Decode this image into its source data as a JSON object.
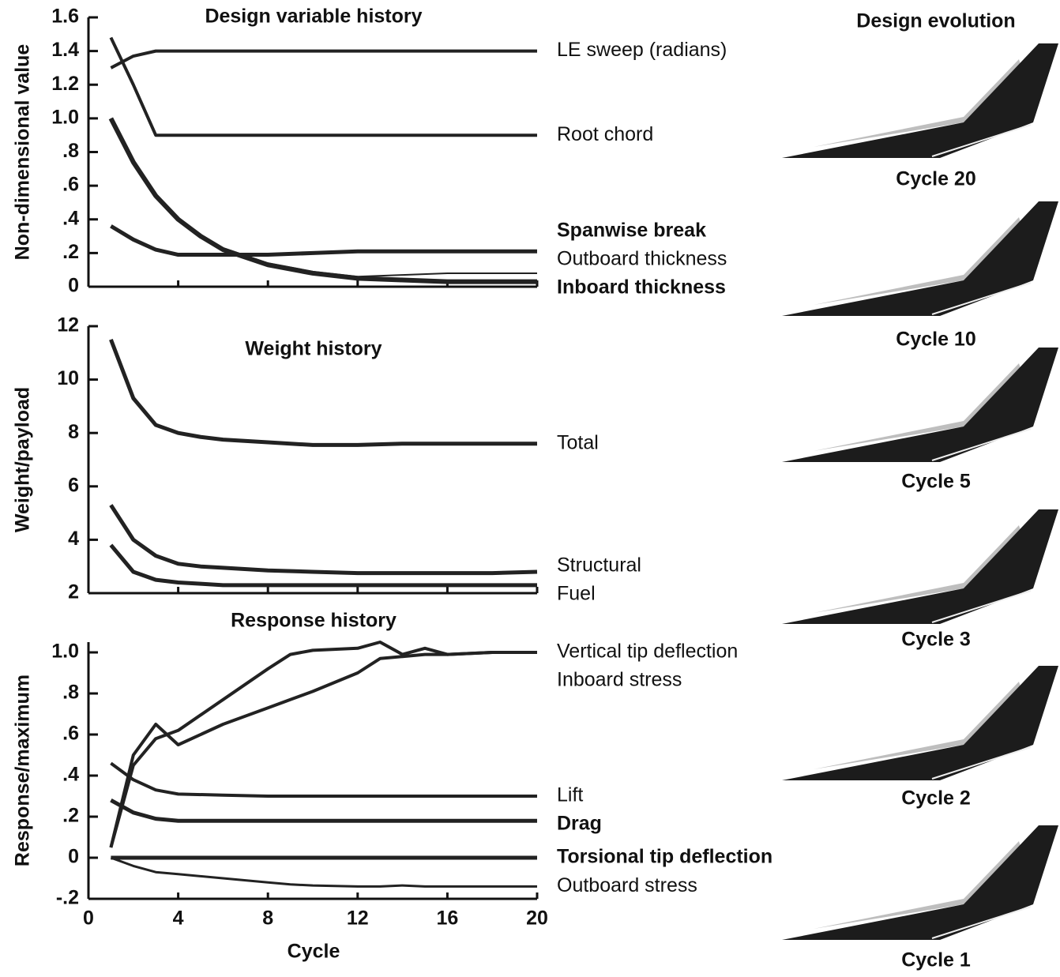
{
  "chart_data": [
    {
      "type": "line",
      "title": "Design variable history",
      "ylabel": "Non-dimensional value",
      "x": [
        1,
        2,
        3,
        4,
        5,
        6,
        8,
        10,
        12,
        14,
        16,
        18,
        20
      ],
      "xlim": [
        0,
        20
      ],
      "xticks": [
        0,
        4,
        8,
        12,
        16,
        20
      ],
      "xtick_labels": false,
      "ylim": [
        0,
        1.6
      ],
      "yticks": [
        0,
        {
          "value": 0.2,
          "label": ".2"
        },
        {
          "value": 0.4,
          "label": ".4"
        },
        {
          "value": 0.6,
          "label": ".6"
        },
        {
          "value": 0.8,
          "label": ".8"
        },
        {
          "value": 1,
          "label": "1.0"
        },
        1.2,
        1.4,
        1.6
      ],
      "series": [
        {
          "name": "LE sweep (radians)",
          "color": "#222222",
          "width": 4,
          "bold": false,
          "values": [
            1.3,
            1.37,
            1.4,
            1.4,
            1.4,
            1.4,
            1.4,
            1.4,
            1.4,
            1.4,
            1.4,
            1.4,
            1.4
          ]
        },
        {
          "name": "Root chord",
          "color": "#222222",
          "width": 4,
          "bold": false,
          "values": [
            1.48,
            1.2,
            0.9,
            0.9,
            0.9,
            0.9,
            0.9,
            0.9,
            0.9,
            0.9,
            0.9,
            0.9,
            0.9
          ]
        },
        {
          "name": "Spanwise break",
          "color": "#222222",
          "width": 5,
          "bold": true,
          "values": [
            0.36,
            0.28,
            0.22,
            0.19,
            0.19,
            0.19,
            0.19,
            0.2,
            0.21,
            0.21,
            0.21,
            0.21,
            0.21
          ]
        },
        {
          "name": "Outboard thickness",
          "color": "#222222",
          "width": 2,
          "bold": false,
          "values": [
            1.0,
            0.75,
            0.55,
            0.41,
            0.31,
            0.23,
            0.14,
            0.09,
            0.06,
            0.07,
            0.08,
            0.08,
            0.08
          ]
        },
        {
          "name": "Inboard thickness",
          "color": "#222222",
          "width": 6,
          "bold": true,
          "values": [
            1.0,
            0.74,
            0.54,
            0.4,
            0.3,
            0.22,
            0.13,
            0.08,
            0.05,
            0.04,
            0.03,
            0.03,
            0.03
          ]
        }
      ]
    },
    {
      "type": "line",
      "title": "Weight history",
      "ylabel": "Weight/payload",
      "x": [
        1,
        2,
        3,
        4,
        5,
        6,
        8,
        10,
        12,
        14,
        16,
        18,
        20
      ],
      "xlim": [
        0,
        20
      ],
      "xticks": [
        0,
        4,
        8,
        12,
        16,
        20
      ],
      "xtick_labels": false,
      "ylim": [
        2,
        12
      ],
      "yticks": [
        2,
        4,
        6,
        8,
        10,
        12
      ],
      "series": [
        {
          "name": "Total",
          "color": "#222222",
          "width": 5,
          "bold": false,
          "values": [
            11.5,
            9.3,
            8.3,
            8.0,
            7.85,
            7.75,
            7.65,
            7.55,
            7.55,
            7.6,
            7.6,
            7.6,
            7.6
          ]
        },
        {
          "name": "Structural",
          "color": "#222222",
          "width": 5,
          "bold": false,
          "values": [
            5.3,
            4.0,
            3.4,
            3.1,
            3.0,
            2.95,
            2.85,
            2.8,
            2.75,
            2.75,
            2.75,
            2.75,
            2.8
          ]
        },
        {
          "name": "Fuel",
          "color": "#222222",
          "width": 5,
          "bold": false,
          "values": [
            3.8,
            2.8,
            2.5,
            2.4,
            2.35,
            2.3,
            2.3,
            2.3,
            2.3,
            2.3,
            2.3,
            2.3,
            2.3
          ]
        }
      ]
    },
    {
      "type": "line",
      "title": "Response history",
      "ylabel": "Response/maximum",
      "xlabel": "Cycle",
      "x": [
        1,
        2,
        3,
        4,
        6,
        8,
        9,
        10,
        12,
        13,
        14,
        15,
        16,
        18,
        20
      ],
      "xlim": [
        0,
        20
      ],
      "xticks": [
        0,
        4,
        8,
        12,
        16,
        20
      ],
      "xtick_labels": true,
      "ylim": [
        -0.2,
        1.05
      ],
      "yticks": [
        {
          "value": -0.2,
          "label": "-.2"
        },
        0,
        {
          "value": 0.2,
          "label": ".2"
        },
        {
          "value": 0.4,
          "label": ".4"
        },
        {
          "value": 0.6,
          "label": ".6"
        },
        {
          "value": 0.8,
          "label": ".8"
        },
        {
          "value": 1,
          "label": "1.0"
        }
      ],
      "series": [
        {
          "name": "Vertical tip deflection",
          "color": "#222222",
          "width": 4,
          "bold": false,
          "values": [
            0.05,
            0.45,
            0.58,
            0.62,
            0.77,
            0.92,
            0.99,
            1.01,
            1.02,
            1.05,
            0.99,
            1.02,
            0.99,
            1.0,
            1.0
          ]
        },
        {
          "name": "Inboard stress",
          "color": "#222222",
          "width": 4,
          "bold": false,
          "values": [
            0.05,
            0.5,
            0.65,
            0.55,
            0.65,
            0.73,
            0.77,
            0.81,
            0.9,
            0.97,
            0.98,
            0.99,
            0.99,
            1.0,
            1.0
          ]
        },
        {
          "name": "Lift",
          "color": "#222222",
          "width": 4,
          "bold": false,
          "values": [
            0.46,
            0.38,
            0.33,
            0.31,
            0.305,
            0.3,
            0.3,
            0.3,
            0.3,
            0.3,
            0.3,
            0.3,
            0.3,
            0.3,
            0.3
          ]
        },
        {
          "name": "Drag",
          "color": "#222222",
          "width": 5,
          "bold": true,
          "values": [
            0.28,
            0.22,
            0.19,
            0.18,
            0.18,
            0.18,
            0.18,
            0.18,
            0.18,
            0.18,
            0.18,
            0.18,
            0.18,
            0.18,
            0.18
          ]
        },
        {
          "name": "Torsional tip deflection",
          "color": "#222222",
          "width": 5,
          "bold": true,
          "values": [
            0,
            0,
            0,
            0,
            0,
            0,
            0,
            0,
            0,
            0,
            0,
            0,
            0,
            0,
            0
          ]
        },
        {
          "name": "Outboard stress",
          "color": "#222222",
          "width": 3,
          "bold": false,
          "values": [
            0,
            -0.04,
            -0.07,
            -0.08,
            -0.1,
            -0.12,
            -0.13,
            -0.135,
            -0.14,
            -0.14,
            -0.135,
            -0.14,
            -0.14,
            -0.14,
            -0.14
          ]
        }
      ]
    }
  ],
  "design_evolution": {
    "title": "Design evolution",
    "cycles": [
      "Cycle 20",
      "Cycle 10",
      "Cycle 5",
      "Cycle 3",
      "Cycle 2",
      "Cycle 1"
    ]
  }
}
